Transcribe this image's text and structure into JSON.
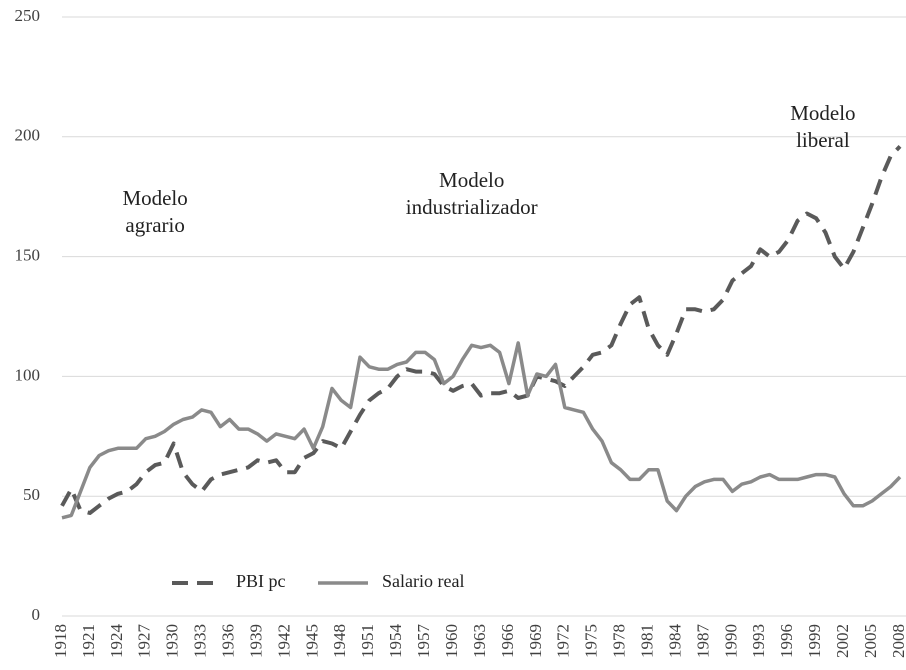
{
  "chart_data": {
    "type": "line",
    "x": [
      1918,
      1919,
      1920,
      1921,
      1922,
      1923,
      1924,
      1925,
      1926,
      1927,
      1928,
      1929,
      1930,
      1931,
      1932,
      1933,
      1934,
      1935,
      1936,
      1937,
      1938,
      1939,
      1940,
      1941,
      1942,
      1943,
      1944,
      1945,
      1946,
      1947,
      1948,
      1949,
      1950,
      1951,
      1952,
      1953,
      1954,
      1955,
      1956,
      1957,
      1958,
      1959,
      1960,
      1961,
      1962,
      1963,
      1964,
      1965,
      1966,
      1967,
      1968,
      1969,
      1970,
      1971,
      1972,
      1973,
      1974,
      1975,
      1976,
      1977,
      1978,
      1979,
      1980,
      1981,
      1982,
      1983,
      1984,
      1985,
      1986,
      1987,
      1988,
      1989,
      1990,
      1991,
      1992,
      1993,
      1994,
      1995,
      1996,
      1997,
      1998,
      1999,
      2000,
      2001,
      2002,
      2003,
      2004,
      2005,
      2006,
      2007,
      2008
    ],
    "series": [
      {
        "name": "PBI pc",
        "color": "#5a5a5a",
        "dashed": true,
        "values": [
          46,
          53,
          44,
          43,
          46,
          49,
          51,
          52,
          55,
          60,
          63,
          64,
          72,
          60,
          55,
          52,
          57,
          59,
          60,
          61,
          62,
          65,
          64,
          65,
          60,
          60,
          66,
          68,
          73,
          72,
          70,
          77,
          84,
          90,
          93,
          95,
          100,
          103,
          102,
          102,
          101,
          96,
          94,
          96,
          97,
          92,
          93,
          93,
          94,
          91,
          92,
          100,
          99,
          98,
          96,
          100,
          104,
          109,
          110,
          113,
          122,
          130,
          133,
          120,
          113,
          109,
          118,
          128,
          128,
          127,
          128,
          132,
          140,
          143,
          146,
          153,
          150,
          152,
          157,
          165,
          168,
          166,
          160,
          150,
          145,
          152,
          162,
          172,
          183,
          192,
          196
        ]
      },
      {
        "name": "Salario real",
        "color": "#8a8a8a",
        "dashed": false,
        "values": [
          41,
          42,
          52,
          62,
          67,
          69,
          70,
          70,
          70,
          74,
          75,
          77,
          80,
          82,
          83,
          86,
          85,
          79,
          82,
          78,
          78,
          76,
          73,
          76,
          75,
          74,
          78,
          70,
          79,
          95,
          90,
          87,
          108,
          104,
          103,
          103,
          105,
          106,
          110,
          110,
          107,
          97,
          100,
          107,
          113,
          112,
          113,
          110,
          97,
          114,
          92,
          101,
          100,
          105,
          87,
          86,
          85,
          78,
          73,
          64,
          61,
          57,
          57,
          61,
          61,
          48,
          44,
          50,
          54,
          56,
          57,
          57,
          52,
          55,
          56,
          58,
          59,
          57,
          57,
          57,
          58,
          59,
          59,
          58,
          51,
          46,
          46,
          48,
          51,
          54,
          58
        ]
      }
    ],
    "annotations": [
      {
        "lines": [
          "Modelo",
          "agrario"
        ],
        "x": 1928
      },
      {
        "lines": [
          "Modelo",
          "industrializador"
        ],
        "x": 1962
      },
      {
        "lines": [
          "Modelo",
          "liberal"
        ],
        "x": 1998
      }
    ],
    "xlim": [
      1918,
      2008
    ],
    "xticks": [
      1918,
      1921,
      1924,
      1927,
      1930,
      1933,
      1936,
      1939,
      1942,
      1945,
      1948,
      1951,
      1954,
      1957,
      1960,
      1963,
      1966,
      1969,
      1972,
      1975,
      1978,
      1981,
      1984,
      1987,
      1990,
      1993,
      1996,
      1999,
      2002,
      2005,
      2008
    ],
    "ylim": [
      0,
      250
    ],
    "yticks": [
      0,
      50,
      100,
      150,
      200,
      250
    ],
    "grid": true,
    "legend": "bottom-left"
  }
}
